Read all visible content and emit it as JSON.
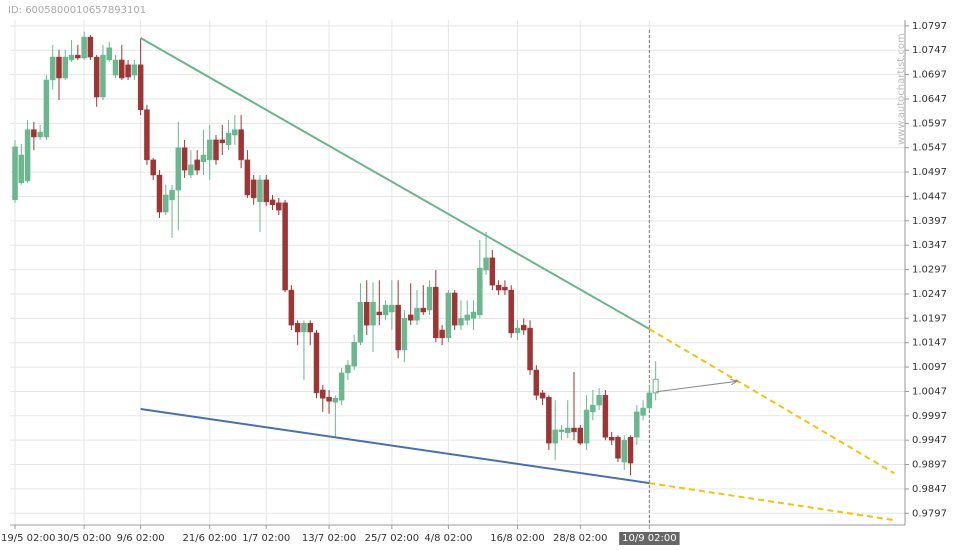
{
  "id_label": "ID: 6005800010657893101",
  "watermark": "www.autochartist.com",
  "chart_data": {
    "type": "candlestick",
    "categories": [
      "19/5 02:00",
      null,
      null,
      null,
      null,
      null,
      null,
      null,
      null,
      null,
      null,
      "30/5 02:00",
      null,
      null,
      null,
      null,
      null,
      null,
      null,
      null,
      "9/6 02:00",
      null,
      null,
      null,
      null,
      null,
      null,
      null,
      null,
      null,
      null,
      "21/6 02:00",
      null,
      null,
      null,
      null,
      null,
      null,
      null,
      null,
      "1/7 02:00",
      null,
      null,
      null,
      null,
      null,
      null,
      null,
      null,
      null,
      "13/7 02:00",
      null,
      null,
      null,
      null,
      null,
      null,
      null,
      null,
      null,
      "25/7 02:00",
      null,
      null,
      null,
      null,
      null,
      null,
      null,
      null,
      "4/8 02:00",
      null,
      null,
      null,
      null,
      null,
      null,
      null,
      null,
      null,
      null,
      "16/8 02:00",
      null,
      null,
      null,
      null,
      null,
      null,
      null,
      null,
      null,
      "28/8 02:00",
      null,
      null,
      null,
      null,
      null,
      null,
      null,
      null,
      null,
      null,
      "10/9 02:00",
      null
    ],
    "open": [
      1.044,
      1.0475,
      1.0479,
      1.0584,
      1.0569,
      1.0569,
      1.0686,
      1.0733,
      1.069,
      1.0727,
      1.0737,
      1.0731,
      1.0774,
      1.0733,
      1.0651,
      1.0727,
      1.0696,
      1.0727,
      1.0717,
      1.0696,
      1.0717,
      1.0625,
      1.0522,
      1.0491,
      1.0415,
      1.044,
      1.046,
      1.0547,
      1.0491,
      1.0522,
      1.0518,
      1.0522,
      1.0563,
      1.0563,
      1.0553,
      1.0573,
      1.0584,
      1.0522,
      1.0481,
      1.0436,
      1.0481,
      1.044,
      1.0434,
      1.0434,
      1.0255,
      1.0187,
      1.0169,
      1.0187,
      1.0167,
      1.005,
      1.0035,
      1.0025,
      1.0029,
      1.0085,
      1.0099,
      1.0148,
      1.023,
      1.0183,
      1.021,
      1.0204,
      1.021,
      1.0224,
      1.0132,
      1.0204,
      1.0193,
      1.0218,
      1.0214,
      1.0261,
      1.0173,
      1.0157,
      1.0249,
      1.0183,
      1.0193,
      1.0197,
      1.0204,
      1.0296,
      1.0321,
      1.0265,
      1.0261,
      1.0255,
      1.0167,
      1.0183,
      1.0177,
      1.0091,
      1.0044,
      1.0035,
      0.9941,
      0.9964,
      0.9962,
      0.9972,
      0.9972,
      0.9941,
      1.0005,
      1.0019,
      1.0039,
      0.9953,
      0.9953,
      0.9902,
      0.9953,
      0.9953,
      0.9998,
      1.0013,
      1.0044
    ],
    "high": [
      1.0563,
      1.0555,
      1.0604,
      1.06,
      1.0594,
      1.0696,
      1.0758,
      1.0748,
      1.0748,
      1.0768,
      1.0758,
      1.0785,
      1.0778,
      1.0737,
      1.0758,
      1.0764,
      1.0737,
      1.0758,
      1.0727,
      1.0727,
      1.0772,
      1.0635,
      1.0526,
      1.0501,
      1.0471,
      1.0471,
      1.06,
      1.0563,
      1.0542,
      1.0542,
      1.0584,
      1.0594,
      1.0573,
      1.0594,
      1.0604,
      1.0614,
      1.0614,
      1.0542,
      1.0491,
      1.0491,
      1.0491,
      1.045,
      1.0444,
      1.044,
      1.0265,
      1.0193,
      1.0193,
      1.0193,
      1.0173,
      1.006,
      1.005,
      1.0039,
      1.0095,
      1.0111,
      1.0163,
      1.0269,
      1.0275,
      1.0271,
      1.0275,
      1.0234,
      1.0275,
      1.0275,
      1.0214,
      1.0269,
      1.0255,
      1.0265,
      1.0275,
      1.0296,
      1.0183,
      1.0255,
      1.0255,
      1.0234,
      1.0234,
      1.0234,
      1.0358,
      1.0374,
      1.0337,
      1.0275,
      1.0275,
      1.0265,
      1.0193,
      1.0197,
      1.0193,
      1.0101,
      1.005,
      1.0039,
      1.0029,
      0.9978,
      1.0029,
      1.0087,
      0.9978,
      1.0039,
      1.005,
      1.0054,
      1.005,
      0.9964,
      0.9957,
      0.9957,
      0.9957,
      1.0019,
      1.0029,
      1.006,
      1.0109
    ],
    "low": [
      1.0434,
      1.0471,
      1.0475,
      1.0542,
      1.0563,
      1.0563,
      1.0666,
      1.0645,
      1.0686,
      1.0723,
      1.0727,
      1.0727,
      1.0727,
      1.0631,
      1.0645,
      1.0723,
      1.069,
      1.0686,
      1.0686,
      1.0686,
      1.0614,
      1.0512,
      1.0481,
      1.0403,
      1.0409,
      1.0362,
      1.0378,
      1.0485,
      1.0485,
      1.0491,
      1.0491,
      1.0481,
      1.0512,
      1.0532,
      1.0542,
      1.0553,
      1.0505,
      1.0444,
      1.043,
      1.0374,
      1.0427,
      1.0419,
      1.0409,
      1.0251,
      1.0173,
      1.0142,
      1.007,
      1.0142,
      1.0033,
      1.0005,
      1.0001,
      0.9953,
      1.0019,
      1.007,
      1.0091,
      1.0142,
      1.0163,
      1.0128,
      1.0183,
      1.0193,
      1.0173,
      1.0115,
      1.0107,
      1.0183,
      1.0183,
      1.0204,
      1.0204,
      1.0148,
      1.0142,
      1.0148,
      1.0173,
      1.0173,
      1.0183,
      1.0173,
      1.0197,
      1.0286,
      1.0255,
      1.0245,
      1.0245,
      1.0157,
      1.0152,
      1.0163,
      1.0081,
      1.0029,
      1.0019,
      0.9927,
      0.9906,
      0.9947,
      0.9951,
      0.9947,
      0.9937,
      0.9927,
      0.9988,
      1.0009,
      0.9947,
      0.9937,
      0.9902,
      0.9886,
      0.9875,
      0.9937,
      0.9988,
      1.0009,
      1.0029
    ],
    "close": [
      1.0549,
      1.0532,
      1.0584,
      1.0569,
      1.0579,
      1.0686,
      1.0733,
      1.069,
      1.0733,
      1.0737,
      1.0731,
      1.0774,
      1.0733,
      1.0651,
      1.0737,
      1.0752,
      1.0727,
      1.069,
      1.0692,
      1.0717,
      1.0625,
      1.0522,
      1.0491,
      1.0415,
      1.045,
      1.046,
      1.0547,
      1.0501,
      1.0512,
      1.0501,
      1.0532,
      1.0563,
      1.0522,
      1.0557,
      1.0577,
      1.0584,
      1.0522,
      1.045,
      1.0444,
      1.0481,
      1.0436,
      1.043,
      1.0419,
      1.0255,
      1.0183,
      1.0169,
      1.0187,
      1.0169,
      1.0044,
      1.0033,
      1.0027,
      1.0033,
      1.0085,
      1.0101,
      1.0148,
      1.023,
      1.0183,
      1.023,
      1.0204,
      1.0224,
      1.0224,
      1.0132,
      1.0197,
      1.0193,
      1.0218,
      1.021,
      1.0261,
      1.0157,
      1.0157,
      1.0249,
      1.0183,
      1.0197,
      1.0204,
      1.021,
      1.03,
      1.0321,
      1.0265,
      1.0255,
      1.0255,
      1.0167,
      1.0177,
      1.0173,
      1.0091,
      1.0039,
      1.0033,
      0.9941,
      0.9968,
      0.9968,
      0.9972,
      0.9964,
      0.9941,
      1.0009,
      1.0019,
      1.0039,
      0.9953,
      0.9947,
      0.991,
      0.9947,
      0.99,
      1.0005,
      1.0013,
      1.0044,
      1.0072
    ],
    "up_color": "#6bb78f",
    "down_color": "#9e3535",
    "hollow_last": true,
    "xlim": [
      -0.8,
      141.7
    ],
    "ylim": [
      0.9773,
      1.0809
    ],
    "yticks": [
      1.0797,
      1.0747,
      1.0697,
      1.0647,
      1.0597,
      1.0547,
      1.0497,
      1.0447,
      1.0397,
      1.0347,
      1.0297,
      1.0247,
      1.0197,
      1.0147,
      1.0097,
      1.0047,
      0.9997,
      0.9947,
      0.9897,
      0.9847,
      0.9797
    ],
    "grid": true,
    "crosshair_index": 101,
    "trend_lines": [
      {
        "color": "#6db38e",
        "x": [
          20,
          101
        ],
        "values": [
          1.0772,
          1.0175
        ]
      },
      {
        "color": "#4a6fae",
        "x": [
          20,
          101
        ],
        "values": [
          1.0011,
          0.9859
        ]
      }
    ],
    "projections": [
      {
        "color": "#f2c40f",
        "x": [
          101,
          140
        ],
        "values": [
          1.0175,
          0.9879
        ]
      },
      {
        "color": "#f2c40f",
        "x": [
          101,
          140
        ],
        "values": [
          0.9859,
          0.9783
        ]
      }
    ],
    "arrow": {
      "color": "#888888",
      "x": [
        102,
        115
      ],
      "values": [
        1.0046,
        1.0068
      ]
    }
  }
}
